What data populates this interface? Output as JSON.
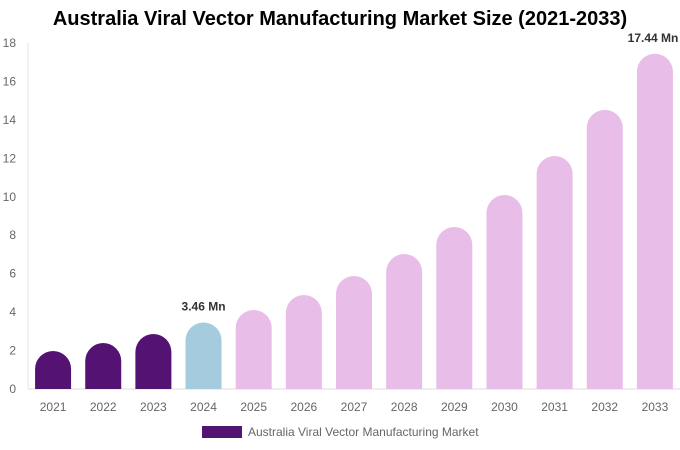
{
  "chart_data": {
    "type": "bar",
    "title": "Australia Viral Vector Manufacturing Market Size (2021-2033)",
    "categories": [
      "2021",
      "2022",
      "2023",
      "2024",
      "2025",
      "2026",
      "2027",
      "2028",
      "2029",
      "2030",
      "2031",
      "2032",
      "2033"
    ],
    "series": [
      {
        "name": "Australia Viral Vector Manufacturing Market",
        "values": [
          1.98,
          2.39,
          2.86,
          3.46,
          4.11,
          4.89,
          5.88,
          7.02,
          8.43,
          10.09,
          12.12,
          14.52,
          17.44
        ]
      }
    ],
    "data_labels": [
      {
        "index": 3,
        "text": "3.46 Mn"
      },
      {
        "index": 12,
        "text": "17.44 Mn"
      }
    ],
    "ylim": [
      0,
      18
    ],
    "yticks": [
      0,
      2,
      4,
      6,
      8,
      10,
      12,
      14,
      16,
      18
    ],
    "grid": false,
    "legend_position": "bottom",
    "colors": {
      "historical": "#541373",
      "base_year": "#A5CBDF",
      "forecast": "#E8BDE8"
    }
  }
}
